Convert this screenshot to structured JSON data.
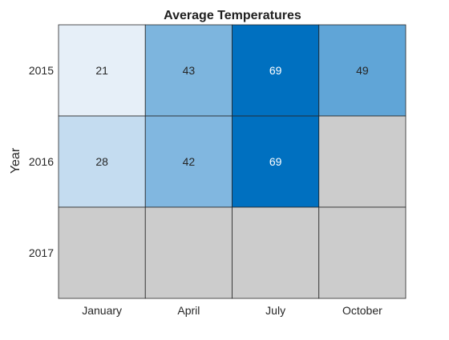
{
  "chart_data": {
    "type": "heatmap",
    "title": "Average Temperatures",
    "xlabel": "",
    "ylabel": "Year",
    "x_categories": [
      "January",
      "April",
      "July",
      "October"
    ],
    "y_categories": [
      "2015",
      "2016",
      "2017"
    ],
    "values": [
      [
        21,
        43,
        69,
        49
      ],
      [
        28,
        42,
        69,
        null
      ],
      [
        null,
        null,
        null,
        null
      ]
    ],
    "color_range": [
      21,
      69
    ],
    "colors": {
      "low": "#e6eff8",
      "high": "#0070c0",
      "missing": "#cccccc",
      "text_dark": "#262626",
      "text_light": "#ffffff",
      "grid": "#262626"
    }
  }
}
